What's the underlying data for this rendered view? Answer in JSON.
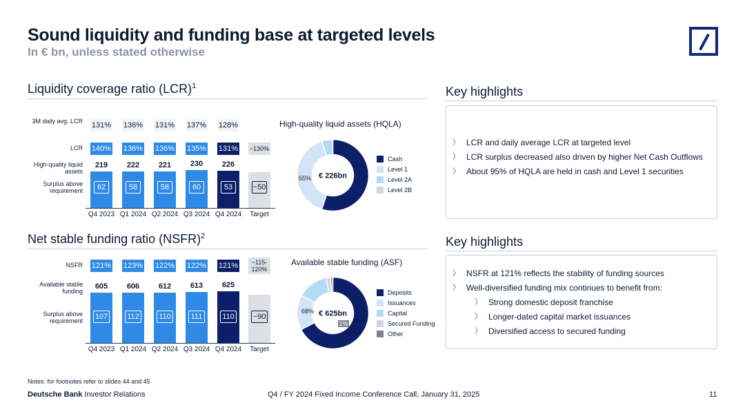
{
  "header": {
    "title": "Sound liquidity and funding base at targeted levels",
    "subtitle": "In € bn, unless stated otherwise"
  },
  "lcr": {
    "title": "Liquidity coverage ratio (LCR)",
    "footnote": "1",
    "row_labels": {
      "avg": "3M daily avg. LCR",
      "lcr": "LCR",
      "hqla": "High-quality liquid assets",
      "surplus": "Surplus above requirement"
    },
    "target_lcr": "~130%",
    "target_surplus": "~50",
    "target_label": "Target"
  },
  "nsfr": {
    "title": "Net stable funding ratio (NSFR)",
    "footnote": "2",
    "row_labels": {
      "nsfr": "NSFR",
      "asf": "Available stable funding",
      "surplus": "Surplus above requirement"
    },
    "target_nsfr": "~115-120%",
    "target_surplus": "~90",
    "target_label": "Target"
  },
  "hqla_donut": {
    "title": "High-quality liquid assets (HQLA)",
    "center": "€ 226bn"
  },
  "asf_donut": {
    "title": "Available stable funding (ASF)",
    "center": "€ 625bn"
  },
  "chart_data": [
    {
      "type": "bar",
      "categories": [
        "Q4 2023",
        "Q1 2024",
        "Q2 2024",
        "Q3 2024",
        "Q4 2024"
      ],
      "series": [
        {
          "name": "High-quality liquid assets",
          "values": [
            219,
            222,
            221,
            230,
            226
          ]
        },
        {
          "name": "Surplus above requirement",
          "values": [
            62,
            58,
            58,
            60,
            53
          ]
        }
      ],
      "rows": {
        "avg_lcr": [
          "131%",
          "136%",
          "131%",
          "137%",
          "128%"
        ],
        "lcr": [
          "140%",
          "136%",
          "136%",
          "135%",
          "131%"
        ]
      }
    },
    {
      "type": "pie",
      "labels": [
        "Cash",
        "Level 1",
        "Level 2A",
        "Level 2B"
      ],
      "values": [
        55,
        40,
        5,
        0
      ],
      "value_labels": [
        "55%",
        "40%",
        "5%",
        ""
      ],
      "colors": [
        "#0c2069",
        "#d3e4f7",
        "#b5daf6",
        "#d4d6db"
      ]
    },
    {
      "type": "bar",
      "categories": [
        "Q4 2023",
        "Q1 2024",
        "Q2 2024",
        "Q3 2024",
        "Q4 2024"
      ],
      "series": [
        {
          "name": "Available stable funding",
          "values": [
            605,
            606,
            612,
            613,
            625
          ]
        },
        {
          "name": "Surplus above requirement",
          "values": [
            107,
            112,
            110,
            111,
            110
          ]
        }
      ],
      "rows": {
        "nsfr": [
          "121%",
          "123%",
          "122%",
          "122%",
          "121%"
        ]
      }
    },
    {
      "type": "pie",
      "labels": [
        "Deposits",
        "Issuances",
        "Capital",
        "Secured Funding",
        "Other"
      ],
      "values": [
        68,
        16,
        14,
        2,
        1
      ],
      "value_labels": [
        "68%",
        "16%",
        "14%",
        "2%",
        "1%"
      ],
      "colors": [
        "#0c2069",
        "#d3e4f7",
        "#b5daf6",
        "#d4d6db",
        "#7d8594"
      ]
    }
  ],
  "key_highlights_1": {
    "title": "Key highlights",
    "items": [
      "LCR and daily average LCR at targeted level",
      "LCR surplus decreased also driven by higher Net Cash Outflows",
      "About 95% of HQLA are held in cash and Level 1 securities"
    ]
  },
  "key_highlights_2": {
    "title": "Key highlights",
    "items": [
      "NSFR at 121% reflects the stability of funding sources",
      "Well-diversified funding mix continues to benefit from:"
    ],
    "sub_items": [
      "Strong domestic deposit franchise",
      "Longer-dated capital market issuances",
      "Diversified access to secured funding"
    ]
  },
  "footer": {
    "notes": "Notes: for footnotes refer to slides 44 and 45",
    "brand_bold": "Deutsche Bank",
    "brand_rest": " Investor Relations",
    "event": "Q4 / FY 2024 Fixed Income Conference Call, January 31, 2025",
    "page": "11"
  }
}
